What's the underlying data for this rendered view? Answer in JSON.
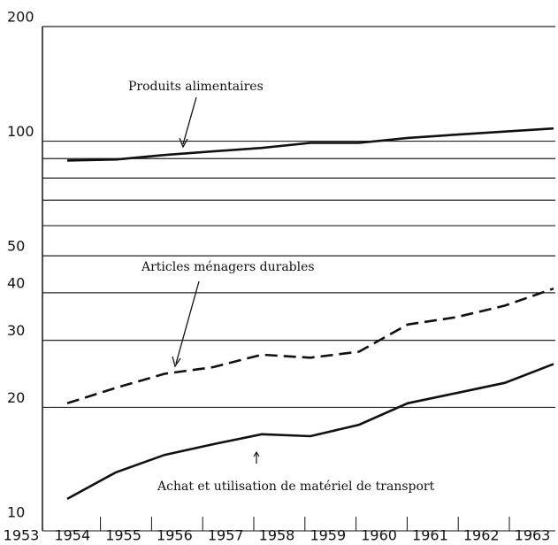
{
  "chart_data": {
    "type": "line",
    "log_y": true,
    "grid": true,
    "categories": [
      "1953",
      "1954",
      "1955",
      "1956",
      "1957",
      "1958",
      "1959",
      "1960",
      "1961",
      "1962",
      "1963"
    ],
    "ylim": [
      10,
      200
    ],
    "yticks": [
      10,
      20,
      30,
      40,
      50,
      100,
      200
    ],
    "ygrid_minor": [
      60,
      70,
      80,
      90
    ],
    "series": [
      {
        "name": "Produits alimentaires",
        "color": "#111111",
        "dash": false,
        "values": [
          89,
          89.5,
          92,
          94,
          96,
          99,
          99,
          102,
          104,
          106,
          108
        ]
      },
      {
        "name": "Articles ménagers durables",
        "color": "#111111",
        "dash": true,
        "values": [
          20.5,
          22.5,
          24.5,
          25.5,
          27.5,
          27,
          28,
          33,
          34.5,
          37,
          41
        ]
      },
      {
        "name": "Achat et utilisation de matériel de transport",
        "color": "#111111",
        "dash": false,
        "values": [
          11.5,
          13.5,
          15,
          16,
          17,
          16.8,
          18,
          20.5,
          21.8,
          23.2,
          26
        ]
      }
    ]
  }
}
